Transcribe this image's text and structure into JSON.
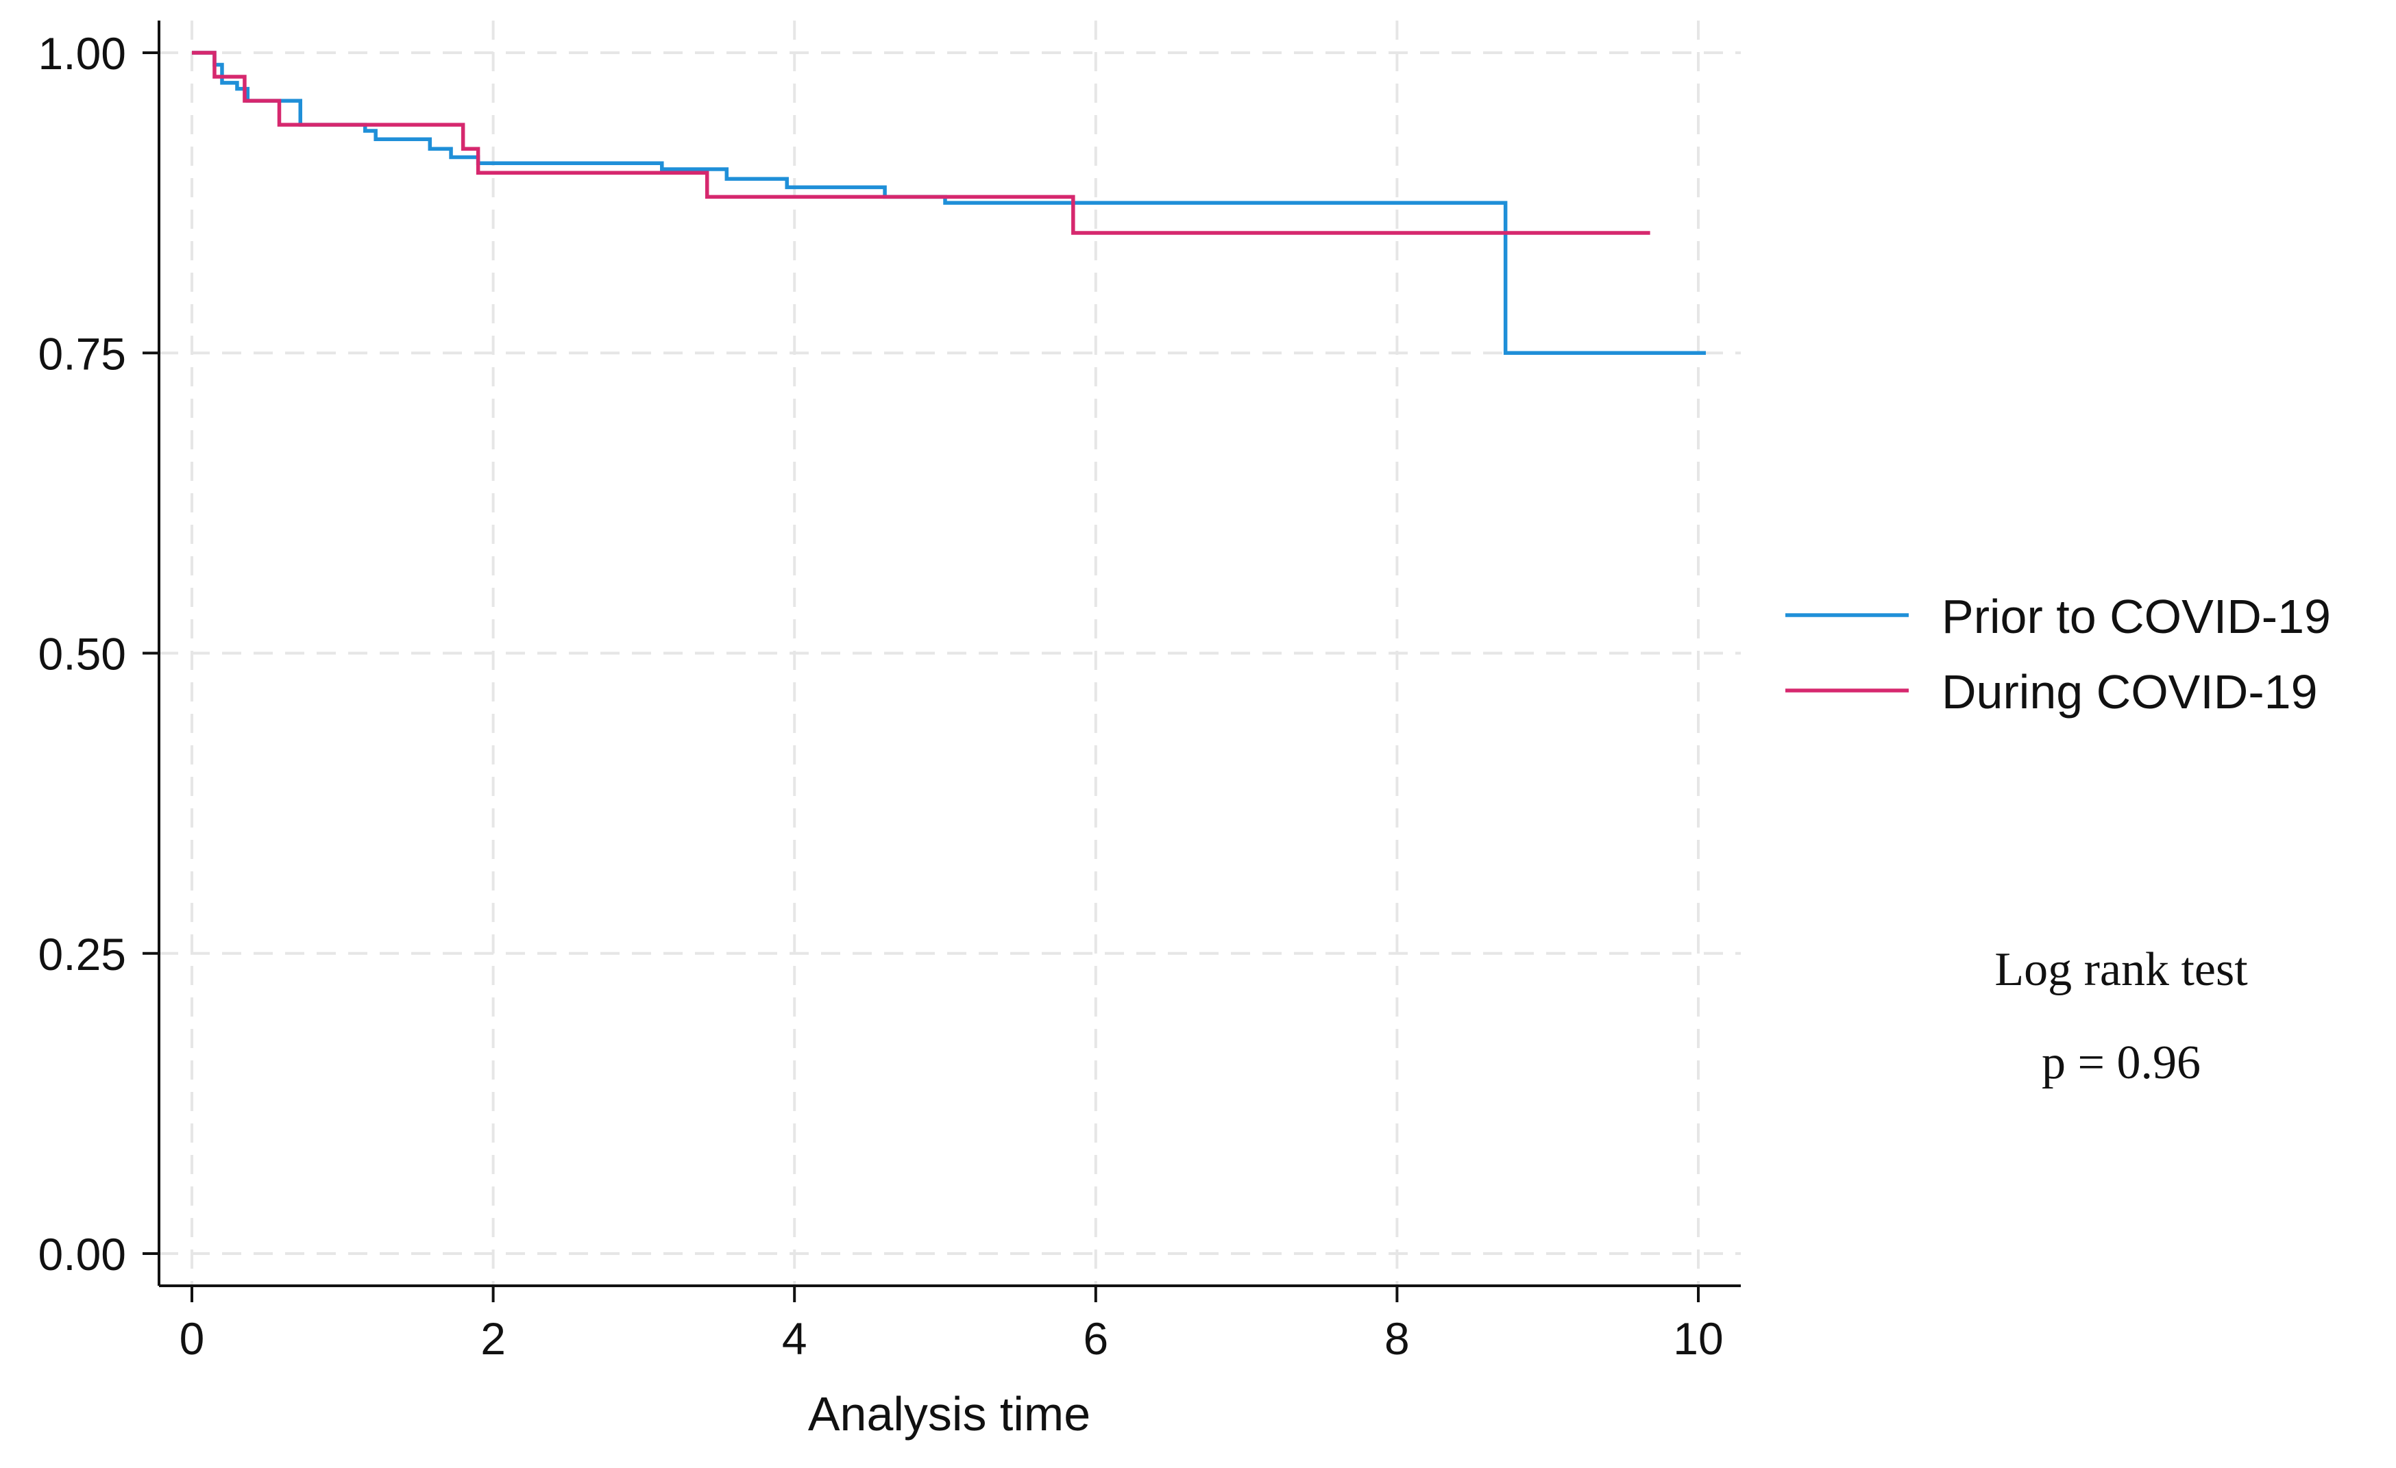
{
  "chart_data": {
    "type": "line",
    "title": "",
    "xlabel": "Analysis time",
    "ylabel": "",
    "xlim": [
      0,
      10
    ],
    "ylim": [
      0,
      1
    ],
    "x_ticks": [
      0,
      2,
      4,
      6,
      8,
      10
    ],
    "x_tick_labels": [
      "0",
      "2",
      "4",
      "6",
      "8",
      "10"
    ],
    "y_ticks": [
      0,
      0.25,
      0.5,
      0.75,
      1.0
    ],
    "y_tick_labels": [
      "0.00",
      "0.25",
      "0.50",
      "0.75",
      "1.00"
    ],
    "grid": true,
    "legend_position": "right",
    "step": true,
    "series": [
      {
        "name": "Prior to COVID-19",
        "color": "#1f8fd8",
        "x": [
          0,
          0.15,
          0.2,
          0.3,
          0.37,
          0.72,
          1.15,
          1.22,
          1.58,
          1.72,
          1.9,
          3.12,
          3.55,
          3.95,
          4.6,
          5.0,
          8.72,
          10.05
        ],
        "y": [
          1.0,
          0.99,
          0.975,
          0.97,
          0.96,
          0.94,
          0.935,
          0.928,
          0.92,
          0.913,
          0.908,
          0.903,
          0.895,
          0.888,
          0.88,
          0.875,
          0.75,
          0.75
        ]
      },
      {
        "name": "During COVID-19",
        "color": "#d6286e",
        "x": [
          0,
          0.12,
          0.15,
          0.35,
          0.58,
          1.8,
          1.9,
          3.42,
          5.85,
          9.68
        ],
        "y": [
          1.0,
          1.0,
          0.98,
          0.96,
          0.94,
          0.92,
          0.9,
          0.88,
          0.85,
          0.85
        ]
      }
    ],
    "annotations": [
      "Log rank test",
      "p = 0.96"
    ]
  }
}
